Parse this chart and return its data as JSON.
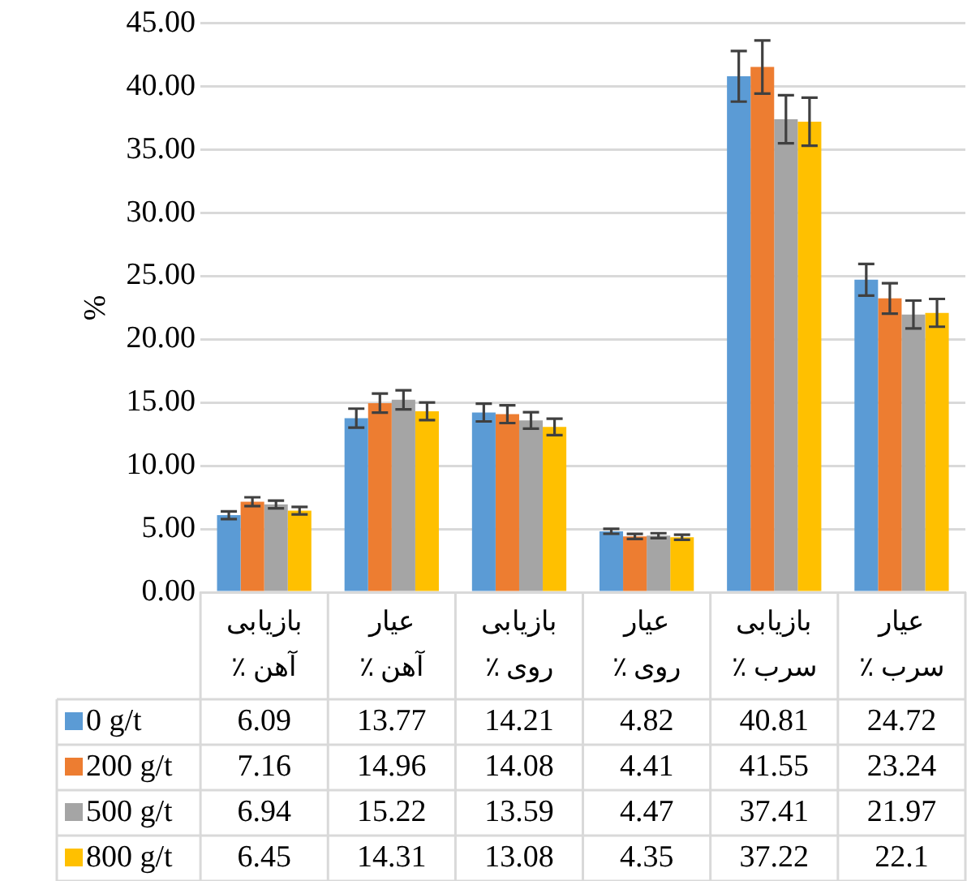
{
  "chart_data": {
    "type": "bar",
    "ylabel": "%",
    "categories": [
      "بازیابی آهن ٪",
      "عیار آهن ٪",
      "بازیابی روی ٪",
      "عیار روی ٪",
      "بازیابی سرب ٪",
      "عیار سرب ٪"
    ],
    "series": [
      {
        "name": "0 g/t",
        "color": "#5b9bd5",
        "values": [
          6.09,
          13.77,
          14.21,
          4.82,
          40.81,
          24.72
        ],
        "errors": [
          0.3,
          0.75,
          0.7,
          0.2,
          2.0,
          1.25
        ]
      },
      {
        "name": "200 g/t",
        "color": "#ed7d31",
        "values": [
          7.16,
          14.96,
          14.08,
          4.41,
          41.55,
          23.24
        ],
        "errors": [
          0.35,
          0.75,
          0.7,
          0.2,
          2.1,
          1.2
        ]
      },
      {
        "name": "500 g/t",
        "color": "#a5a5a5",
        "values": [
          6.94,
          15.22,
          13.59,
          4.47,
          37.41,
          21.97
        ],
        "errors": [
          0.3,
          0.75,
          0.65,
          0.2,
          1.9,
          1.1
        ]
      },
      {
        "name": "800 g/t",
        "color": "#ffc000",
        "values": [
          6.45,
          14.31,
          13.08,
          4.35,
          37.22,
          22.1
        ],
        "errors": [
          0.3,
          0.7,
          0.65,
          0.2,
          1.9,
          1.1
        ]
      }
    ],
    "ylim": [
      0,
      45
    ],
    "yticks": [
      {
        "value": 0,
        "label": "0.00"
      },
      {
        "value": 5,
        "label": "5.00"
      },
      {
        "value": 10,
        "label": "10.00"
      },
      {
        "value": 15,
        "label": "15.00"
      },
      {
        "value": 20,
        "label": "20.00"
      },
      {
        "value": 25,
        "label": "25.00"
      },
      {
        "value": 30,
        "label": "30.00"
      },
      {
        "value": 35,
        "label": "35.00"
      },
      {
        "value": 40,
        "label": "40.00"
      },
      {
        "value": 45,
        "label": "45.00"
      }
    ],
    "grid": "y",
    "legend": "bottom",
    "data_labels": true
  }
}
